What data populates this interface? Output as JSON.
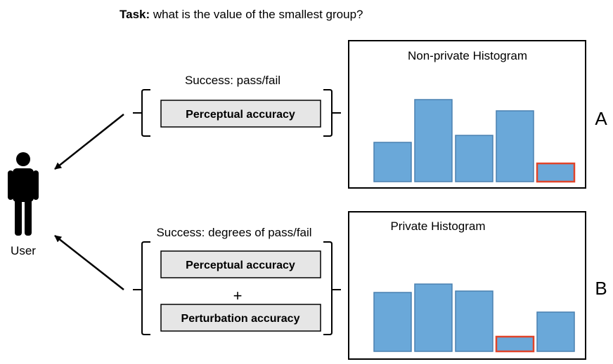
{
  "task": {
    "prefix": "Task:",
    "question": " what is the value of the smallest group?"
  },
  "user": {
    "label": "User",
    "icon": "person-icon"
  },
  "panels": [
    {
      "id": "A",
      "letter": "A",
      "histogram_title": "Non-private Histogram",
      "success_label": "Success: pass/fail",
      "accuracy_boxes": [
        "Perceptual accuracy"
      ]
    },
    {
      "id": "B",
      "letter": "B",
      "histogram_title": "Private Histogram",
      "success_label": "Success: degrees of pass/fail",
      "plus": "+",
      "accuracy_boxes": [
        "Perceptual accuracy",
        "Perturbation accuracy"
      ]
    }
  ],
  "colors": {
    "bar_fill": "#6aa8d9",
    "bar_stroke": "#4a80b0",
    "highlight_stroke": "#e0442a",
    "box_fill": "#e6e6e6",
    "ink": "#000000"
  },
  "chart_data": [
    {
      "type": "bar",
      "title": "Non-private Histogram",
      "values": [
        56,
        117,
        66,
        101,
        26
      ],
      "highlight_index": 4,
      "ylim": [
        0,
        130
      ],
      "axes": false
    },
    {
      "type": "bar",
      "title": "Private Histogram",
      "values": [
        84,
        96,
        86,
        21,
        56
      ],
      "highlight_index": 3,
      "ylim": [
        0,
        130
      ],
      "axes": false
    }
  ]
}
